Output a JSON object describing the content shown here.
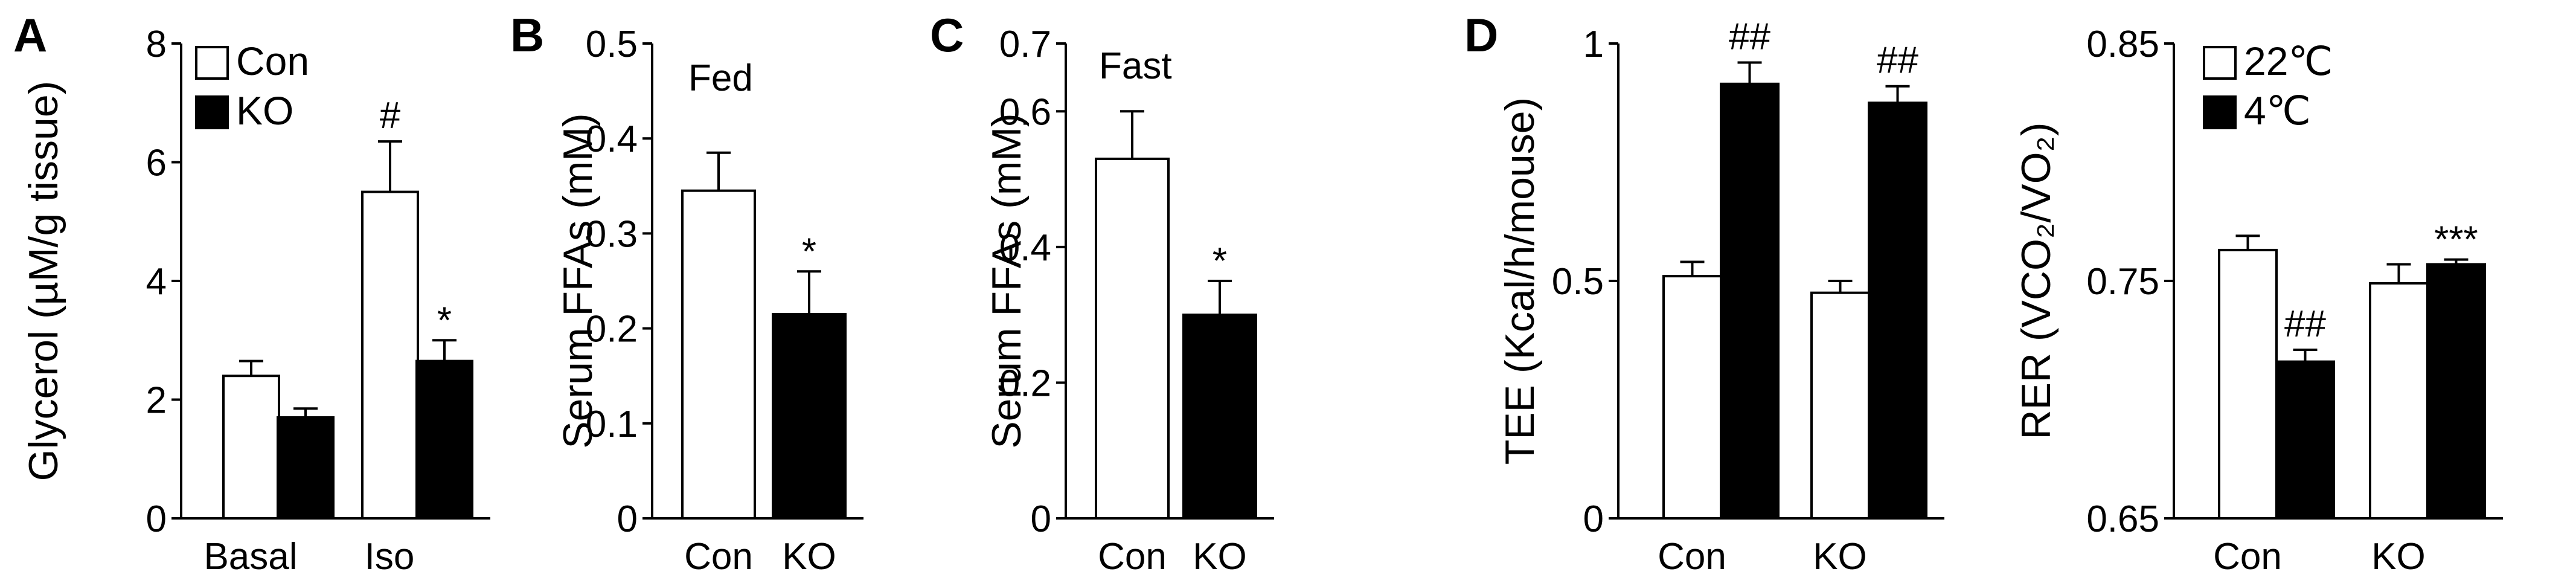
{
  "chart_data": [
    {
      "type": "bar",
      "panel": "A",
      "categories": [
        "Basal",
        "Iso"
      ],
      "series": [
        {
          "name": "Con",
          "values": [
            2.4,
            5.5
          ],
          "errors": [
            0.25,
            0.85
          ],
          "fill": "#ffffff"
        },
        {
          "name": "KO",
          "values": [
            1.7,
            2.65
          ],
          "errors": [
            0.15,
            0.35
          ],
          "fill": "#000000"
        }
      ],
      "annotations": [
        {
          "series": 0,
          "category": 1,
          "text": "#"
        },
        {
          "series": 1,
          "category": 1,
          "text": "*"
        }
      ],
      "ylabel": "Glycerol (µM/g tissue)",
      "ylim": [
        0,
        8
      ],
      "yticks": [
        "0",
        "2",
        "4",
        "6",
        "8"
      ],
      "legend": "top-left"
    },
    {
      "type": "bar",
      "panel": "B",
      "categories": [
        "Con",
        "KO"
      ],
      "series": [
        {
          "values": [
            0.345,
            0.215
          ],
          "errors": [
            0.04,
            0.045
          ],
          "fills": [
            "#ffffff",
            "#000000"
          ]
        }
      ],
      "annotations": [
        {
          "series": 0,
          "category": 1,
          "text": "*"
        }
      ],
      "note": "Fed",
      "ylabel": "Serum FFAs (mM)",
      "ylim": [
        0,
        0.5
      ],
      "yticks": [
        "0",
        "0.1",
        "0.2",
        "0.3",
        "0.4",
        "0.5"
      ]
    },
    {
      "type": "bar",
      "panel": "C",
      "categories": [
        "Con",
        "KO"
      ],
      "series": [
        {
          "values": [
            0.53,
            0.3
          ],
          "errors": [
            0.07,
            0.05
          ],
          "fills": [
            "#ffffff",
            "#000000"
          ]
        }
      ],
      "annotations": [
        {
          "series": 0,
          "category": 1,
          "text": "*"
        }
      ],
      "note": "Fast",
      "ylabel": "Serum FFAs (mM)",
      "ylim": [
        0,
        0.7
      ],
      "yticks": [
        "0",
        "0.2",
        "0.4",
        "0.6",
        "0.7"
      ]
    },
    {
      "type": "bar",
      "panel": "D",
      "categories": [
        "Con",
        "KO"
      ],
      "series": [
        {
          "name": "22℃",
          "values": [
            0.51,
            0.475
          ],
          "errors": [
            0.03,
            0.025
          ],
          "fill": "#ffffff"
        },
        {
          "name": "4℃",
          "values": [
            0.915,
            0.875
          ],
          "errors": [
            0.045,
            0.035
          ],
          "fill": "#000000"
        }
      ],
      "annotations": [
        {
          "series": 1,
          "category": 0,
          "text": "##"
        },
        {
          "series": 1,
          "category": 1,
          "text": "##"
        }
      ],
      "ylabel": "TEE (Kcal/h/mouse)",
      "ylim": [
        0,
        1
      ],
      "yticks": [
        "0",
        "0.5",
        "1"
      ]
    },
    {
      "type": "bar",
      "panel": "",
      "categories": [
        "Con",
        "KO"
      ],
      "series": [
        {
          "name": "22℃",
          "values": [
            0.763,
            0.749
          ],
          "errors": [
            0.006,
            0.008
          ],
          "fill": "#ffffff"
        },
        {
          "name": "4℃",
          "values": [
            0.716,
            0.757
          ],
          "errors": [
            0.005,
            0.002
          ],
          "fill": "#000000"
        }
      ],
      "annotations": [
        {
          "series": 1,
          "category": 0,
          "text": "##"
        },
        {
          "series": 1,
          "category": 1,
          "text": "***"
        }
      ],
      "ylabel": "RER (VCO₂/VO₂)",
      "ylim": [
        0.65,
        0.85
      ],
      "yticks": [
        "0.65",
        "0.75",
        "0.85"
      ],
      "legend": "top-left"
    }
  ]
}
